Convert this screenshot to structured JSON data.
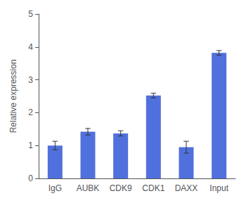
{
  "chart_data": {
    "type": "bar",
    "categories": [
      "IgG",
      "AUBK",
      "CDK9",
      "CDK1",
      "DAXX",
      "Input"
    ],
    "values": [
      1.0,
      1.42,
      1.37,
      2.52,
      0.95,
      3.82
    ],
    "errors": [
      0.13,
      0.1,
      0.08,
      0.07,
      0.18,
      0.07
    ],
    "ylabel": "Relative expression",
    "ylim": [
      0,
      5
    ],
    "yticks": [
      0,
      1,
      2,
      3,
      4,
      5
    ],
    "grid": false
  }
}
